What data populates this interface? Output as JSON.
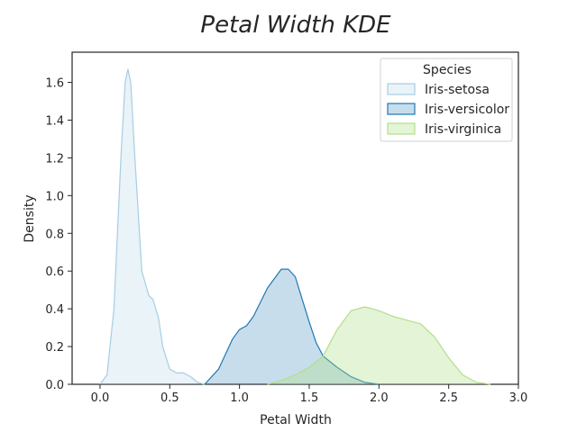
{
  "chart_data": {
    "type": "area",
    "title": "Petal Width KDE",
    "xlabel": "Petal Width",
    "ylabel": "Density",
    "xlim": [
      -0.2,
      3.0
    ],
    "ylim": [
      0,
      1.76
    ],
    "xticks": [
      "0.0",
      "0.5",
      "1.0",
      "1.5",
      "2.0",
      "2.5",
      "3.0"
    ],
    "yticks": [
      "0.0",
      "0.2",
      "0.4",
      "0.6",
      "0.8",
      "1.0",
      "1.2",
      "1.4",
      "1.6"
    ],
    "grid": false,
    "legend": {
      "title": "Species",
      "placement": "top-right"
    },
    "series": [
      {
        "name": "Iris-setosa",
        "line_color": "#a6cee3",
        "fill_color": "#a6cee3",
        "fill_opacity": 0.25,
        "x": [
          0.0,
          0.05,
          0.1,
          0.15,
          0.18,
          0.2,
          0.22,
          0.25,
          0.3,
          0.35,
          0.38,
          0.42,
          0.45,
          0.5,
          0.55,
          0.6,
          0.65,
          0.7,
          0.75
        ],
        "y": [
          0.0,
          0.05,
          0.4,
          1.2,
          1.6,
          1.67,
          1.6,
          1.2,
          0.6,
          0.47,
          0.45,
          0.35,
          0.2,
          0.08,
          0.06,
          0.06,
          0.04,
          0.01,
          0.0
        ]
      },
      {
        "name": "Iris-versicolor",
        "line_color": "#1f78b4",
        "fill_color": "#1f78b4",
        "fill_opacity": 0.25,
        "x": [
          0.75,
          0.85,
          0.95,
          1.0,
          1.05,
          1.1,
          1.2,
          1.3,
          1.35,
          1.4,
          1.45,
          1.5,
          1.55,
          1.6,
          1.7,
          1.8,
          1.9,
          2.0
        ],
        "y": [
          0.0,
          0.08,
          0.24,
          0.29,
          0.31,
          0.36,
          0.51,
          0.61,
          0.61,
          0.57,
          0.45,
          0.33,
          0.22,
          0.15,
          0.09,
          0.04,
          0.01,
          0.0
        ]
      },
      {
        "name": "Iris-virginica",
        "line_color": "#b2df8a",
        "fill_color": "#b2df8a",
        "fill_opacity": 0.35,
        "x": [
          1.2,
          1.3,
          1.4,
          1.5,
          1.6,
          1.7,
          1.8,
          1.9,
          2.0,
          2.1,
          2.2,
          2.3,
          2.4,
          2.5,
          2.6,
          2.7,
          2.8
        ],
        "y": [
          0.0,
          0.02,
          0.05,
          0.09,
          0.15,
          0.29,
          0.39,
          0.41,
          0.39,
          0.36,
          0.34,
          0.32,
          0.25,
          0.14,
          0.05,
          0.01,
          0.0
        ]
      }
    ]
  }
}
